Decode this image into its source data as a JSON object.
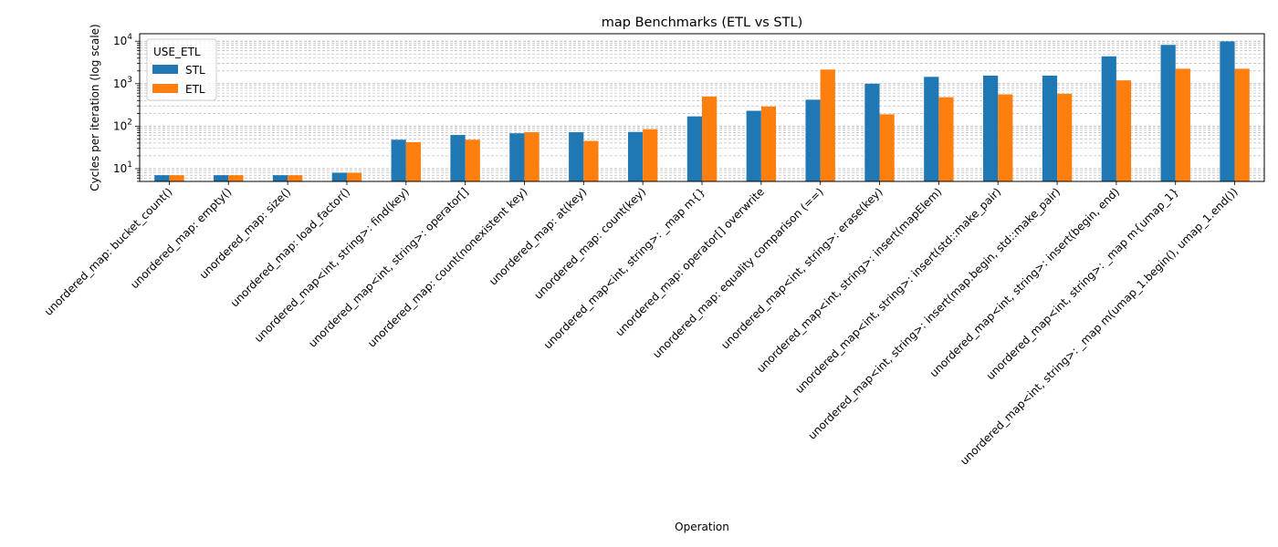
{
  "chart_data": {
    "type": "bar",
    "title": "map Benchmarks (ETL vs STL)",
    "xlabel": "Operation",
    "ylabel": "Cycles per iteration (log scale)",
    "yscale": "log",
    "ylim": [
      5,
      15000
    ],
    "grid": "y-major-and-minor",
    "legend": {
      "title": "USE_ETL",
      "placement": "top-left"
    },
    "categories": [
      "unordered_map: bucket_count()",
      "unordered_map: empty()",
      "unordered_map: size()",
      "unordered_map: load_factor()",
      "unordered_map<int, string>: find(key)",
      "unordered_map<int, string>: operator[]",
      "unordered_map: count(nonexistent key)",
      "unordered_map: at(key)",
      "unordered_map: count(key)",
      "unordered_map<int, string>: _map m{}",
      "unordered_map: operator[] overwrite",
      "unordered_map: equality comparison (==)",
      "unordered_map<int, string>: erase(key)",
      "unordered_map<int, string>: insert(mapElem)",
      "unordered_map<int, string>: insert(std::make_pair)",
      "unordered_map<int, string>: insert(map.begin, std::make_pair)",
      "unordered_map<int, string>: insert(begin, end)",
      "unordered_map<int, string>: _map m{umap_1}",
      "unordered_map<int, string>: _map m(umap_1.begin(), umap_1.end())"
    ],
    "series": [
      {
        "name": "STL",
        "color": "#1f77b4",
        "values": [
          7,
          7,
          7,
          8,
          48,
          62,
          68,
          72,
          73,
          170,
          230,
          420,
          1000,
          1450,
          1550,
          1550,
          4400,
          8200,
          9900
        ]
      },
      {
        "name": "ETL",
        "color": "#ff7f0e",
        "values": [
          7,
          7,
          7,
          8,
          42,
          48,
          72,
          45,
          85,
          500,
          290,
          2150,
          190,
          480,
          560,
          580,
          1200,
          2250,
          2250
        ]
      }
    ]
  }
}
